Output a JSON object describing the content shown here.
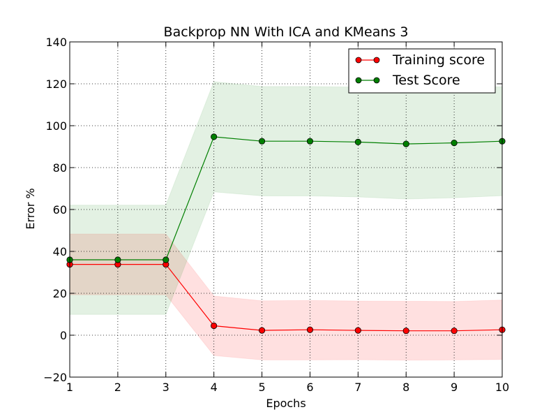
{
  "chart_data": {
    "type": "line",
    "title": "Backprop NN With ICA and KMeans 3",
    "xlabel": "Epochs",
    "ylabel": "Error %",
    "xlim": [
      1,
      10
    ],
    "ylim": [
      -20,
      140
    ],
    "x_ticks": [
      1,
      2,
      3,
      4,
      5,
      6,
      7,
      8,
      9,
      10
    ],
    "y_ticks": [
      -20,
      0,
      20,
      40,
      60,
      80,
      100,
      120,
      140
    ],
    "x_tick_labels": [
      "1",
      "2",
      "3",
      "4",
      "5",
      "6",
      "7",
      "8",
      "9",
      "10"
    ],
    "y_tick_labels": [
      "−20",
      "0",
      "20",
      "40",
      "60",
      "80",
      "100",
      "120",
      "140"
    ],
    "grid": true,
    "legend_position": "top-right",
    "x": [
      1,
      2,
      3,
      4,
      5,
      6,
      7,
      8,
      9,
      10
    ],
    "series": [
      {
        "name": "Training score",
        "color": "#ff0000",
        "band_color": "#ff0000",
        "values": [
          33.8,
          33.8,
          33.8,
          4.5,
          2.3,
          2.6,
          2.3,
          2.1,
          2.1,
          2.6
        ],
        "lower": [
          19.3,
          19.3,
          19.3,
          -9.7,
          -11.8,
          -11.8,
          -11.7,
          -11.9,
          -11.8,
          -11.6
        ],
        "upper": [
          48.3,
          48.3,
          48.3,
          18.7,
          16.4,
          16.6,
          16.3,
          16.2,
          16.1,
          16.8
        ]
      },
      {
        "name": "Test Score",
        "color": "#007f00",
        "band_color": "#008000",
        "values": [
          36.0,
          36.0,
          36.0,
          94.7,
          92.6,
          92.6,
          92.2,
          91.3,
          91.8,
          92.6
        ],
        "lower": [
          9.9,
          9.9,
          9.9,
          68.4,
          66.5,
          66.5,
          66.0,
          65.0,
          65.6,
          66.6
        ],
        "upper": [
          62.1,
          62.1,
          62.1,
          121.0,
          118.7,
          118.7,
          118.4,
          117.6,
          118.0,
          118.6
        ]
      }
    ]
  }
}
